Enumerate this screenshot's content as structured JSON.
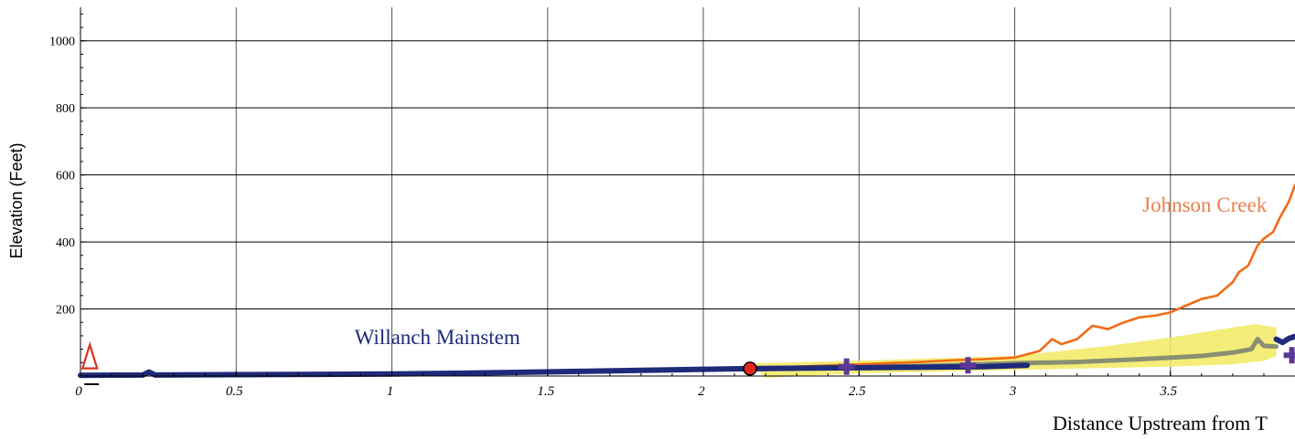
{
  "chart_data": {
    "type": "line",
    "xlabel": "Distance Upstream from T",
    "ylabel": "Elevation (Feet)",
    "xlim": [
      0,
      3.9
    ],
    "ylim": [
      0,
      1100
    ],
    "x_ticks": [
      {
        "value": 0,
        "label": "0"
      },
      {
        "value": 0.5,
        "label": "0.5"
      },
      {
        "value": 1,
        "label": "1"
      },
      {
        "value": 1.5,
        "label": "1.5"
      },
      {
        "value": 2,
        "label": "2"
      },
      {
        "value": 2.5,
        "label": "2.5"
      },
      {
        "value": 3,
        "label": "3"
      },
      {
        "value": 3.5,
        "label": "3.5"
      }
    ],
    "y_ticks": [
      {
        "value": 200,
        "label": "200"
      },
      {
        "value": 400,
        "label": "400"
      },
      {
        "value": 600,
        "label": "600"
      },
      {
        "value": 800,
        "label": "800"
      },
      {
        "value": 1000,
        "label": "1000"
      }
    ],
    "grid": true,
    "series": [
      {
        "name": "Willanch Mainstem",
        "color": "#1f2a7a",
        "label_at": [
          0.88,
          95
        ],
        "x": [
          0,
          0.2,
          0.22,
          0.24,
          0.5,
          0.8,
          1.0,
          1.2,
          1.4,
          1.6,
          1.8,
          2.0,
          2.15,
          2.5,
          2.9,
          3.0,
          3.04
        ],
        "y": [
          2,
          3,
          12,
          3,
          4,
          5,
          6,
          8,
          11,
          14,
          17,
          20,
          22,
          25,
          28,
          31,
          32
        ]
      },
      {
        "name": "",
        "color": "#1f2a7a",
        "x": [
          3.84,
          3.86,
          3.88,
          3.9
        ],
        "y": [
          110,
          100,
          112,
          118
        ]
      },
      {
        "name": "Johnson Creek",
        "color": "#ef6c16",
        "label_color": "#ea7f4a",
        "label_at": [
          3.41,
          490
        ],
        "x": [
          2.15,
          2.3,
          2.5,
          2.7,
          2.8,
          2.9,
          3.0,
          3.08,
          3.12,
          3.15,
          3.2,
          3.25,
          3.3,
          3.35,
          3.4,
          3.45,
          3.5,
          3.55,
          3.6,
          3.65,
          3.7,
          3.72,
          3.75,
          3.78,
          3.8,
          3.83,
          3.85,
          3.88,
          3.9
        ],
        "y": [
          22,
          28,
          35,
          42,
          47,
          50,
          55,
          75,
          110,
          95,
          110,
          150,
          140,
          160,
          175,
          180,
          190,
          210,
          230,
          240,
          280,
          310,
          330,
          390,
          410,
          430,
          470,
          520,
          570
        ]
      },
      {
        "name": "",
        "color": "#8a8f72",
        "x": [
          2.15,
          2.4,
          2.7,
          3.0,
          3.2,
          3.4,
          3.6,
          3.7,
          3.76,
          3.78,
          3.8,
          3.84
        ],
        "y": [
          20,
          25,
          30,
          38,
          42,
          50,
          60,
          70,
          80,
          110,
          90,
          88
        ]
      }
    ],
    "band": {
      "color": "#f2ea61",
      "upper_x": [
        2.15,
        2.5,
        3.0,
        3.3,
        3.5,
        3.7,
        3.77,
        3.84
      ],
      "upper_y": [
        38,
        46,
        60,
        90,
        115,
        145,
        155,
        145
      ],
      "lower_x": [
        3.84,
        3.8,
        3.7,
        3.5,
        3.0,
        2.5,
        2.2
      ],
      "lower_y": [
        60,
        45,
        35,
        28,
        18,
        8,
        -5
      ]
    },
    "markers": [
      {
        "type": "triangle",
        "x": 0.03,
        "y": 50,
        "color": "#d9331f",
        "name": "start-triangle-marker"
      },
      {
        "type": "circle",
        "x": 2.15,
        "y": 22,
        "color": "#e2261f",
        "name": "confluence-circle-marker"
      },
      {
        "type": "plus",
        "x": 2.46,
        "y": 28,
        "color": "#5b3895",
        "name": "plus-marker-1"
      },
      {
        "type": "plus",
        "x": 2.85,
        "y": 32,
        "color": "#5b3895",
        "name": "plus-marker-2"
      },
      {
        "type": "plus",
        "x": 3.89,
        "y": 62,
        "color": "#5b3895",
        "name": "plus-marker-3"
      }
    ]
  }
}
